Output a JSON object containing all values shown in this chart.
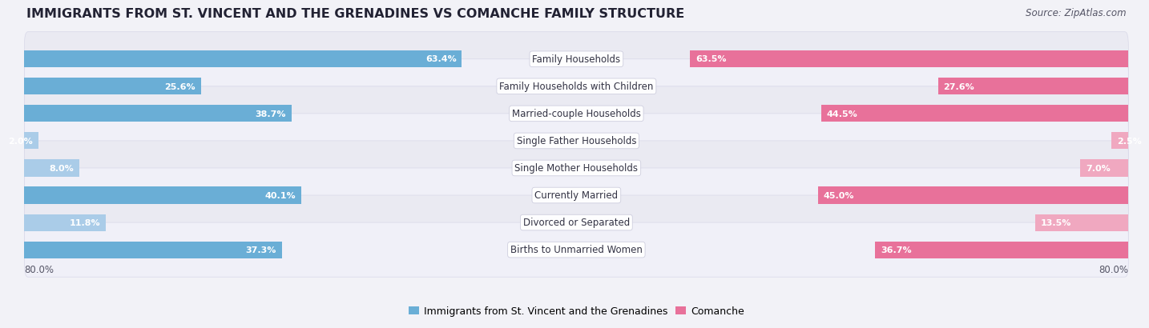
{
  "title": "IMMIGRANTS FROM ST. VINCENT AND THE GRENADINES VS COMANCHE FAMILY STRUCTURE",
  "source": "Source: ZipAtlas.com",
  "categories": [
    "Family Households",
    "Family Households with Children",
    "Married-couple Households",
    "Single Father Households",
    "Single Mother Households",
    "Currently Married",
    "Divorced or Separated",
    "Births to Unmarried Women"
  ],
  "left_values": [
    63.4,
    25.6,
    38.7,
    2.0,
    8.0,
    40.1,
    11.8,
    37.3
  ],
  "right_values": [
    63.5,
    27.6,
    44.5,
    2.5,
    7.0,
    45.0,
    13.5,
    36.7
  ],
  "left_color": "#6aaed6",
  "right_color": "#e8719a",
  "left_color_light": "#aacce8",
  "right_color_light": "#f0a8c0",
  "left_label": "Immigrants from St. Vincent and the Grenadines",
  "right_label": "Comanche",
  "x_max": 80.0,
  "axis_label_left": "80.0%",
  "axis_label_right": "80.0%",
  "bg_color": "#f2f2f7",
  "row_color_even": "#e8e8f0",
  "row_color_odd": "#f0f0f8",
  "title_fontsize": 11.5,
  "cat_fontsize": 8.5,
  "value_fontsize": 8.0,
  "legend_fontsize": 9.0,
  "source_fontsize": 8.5
}
